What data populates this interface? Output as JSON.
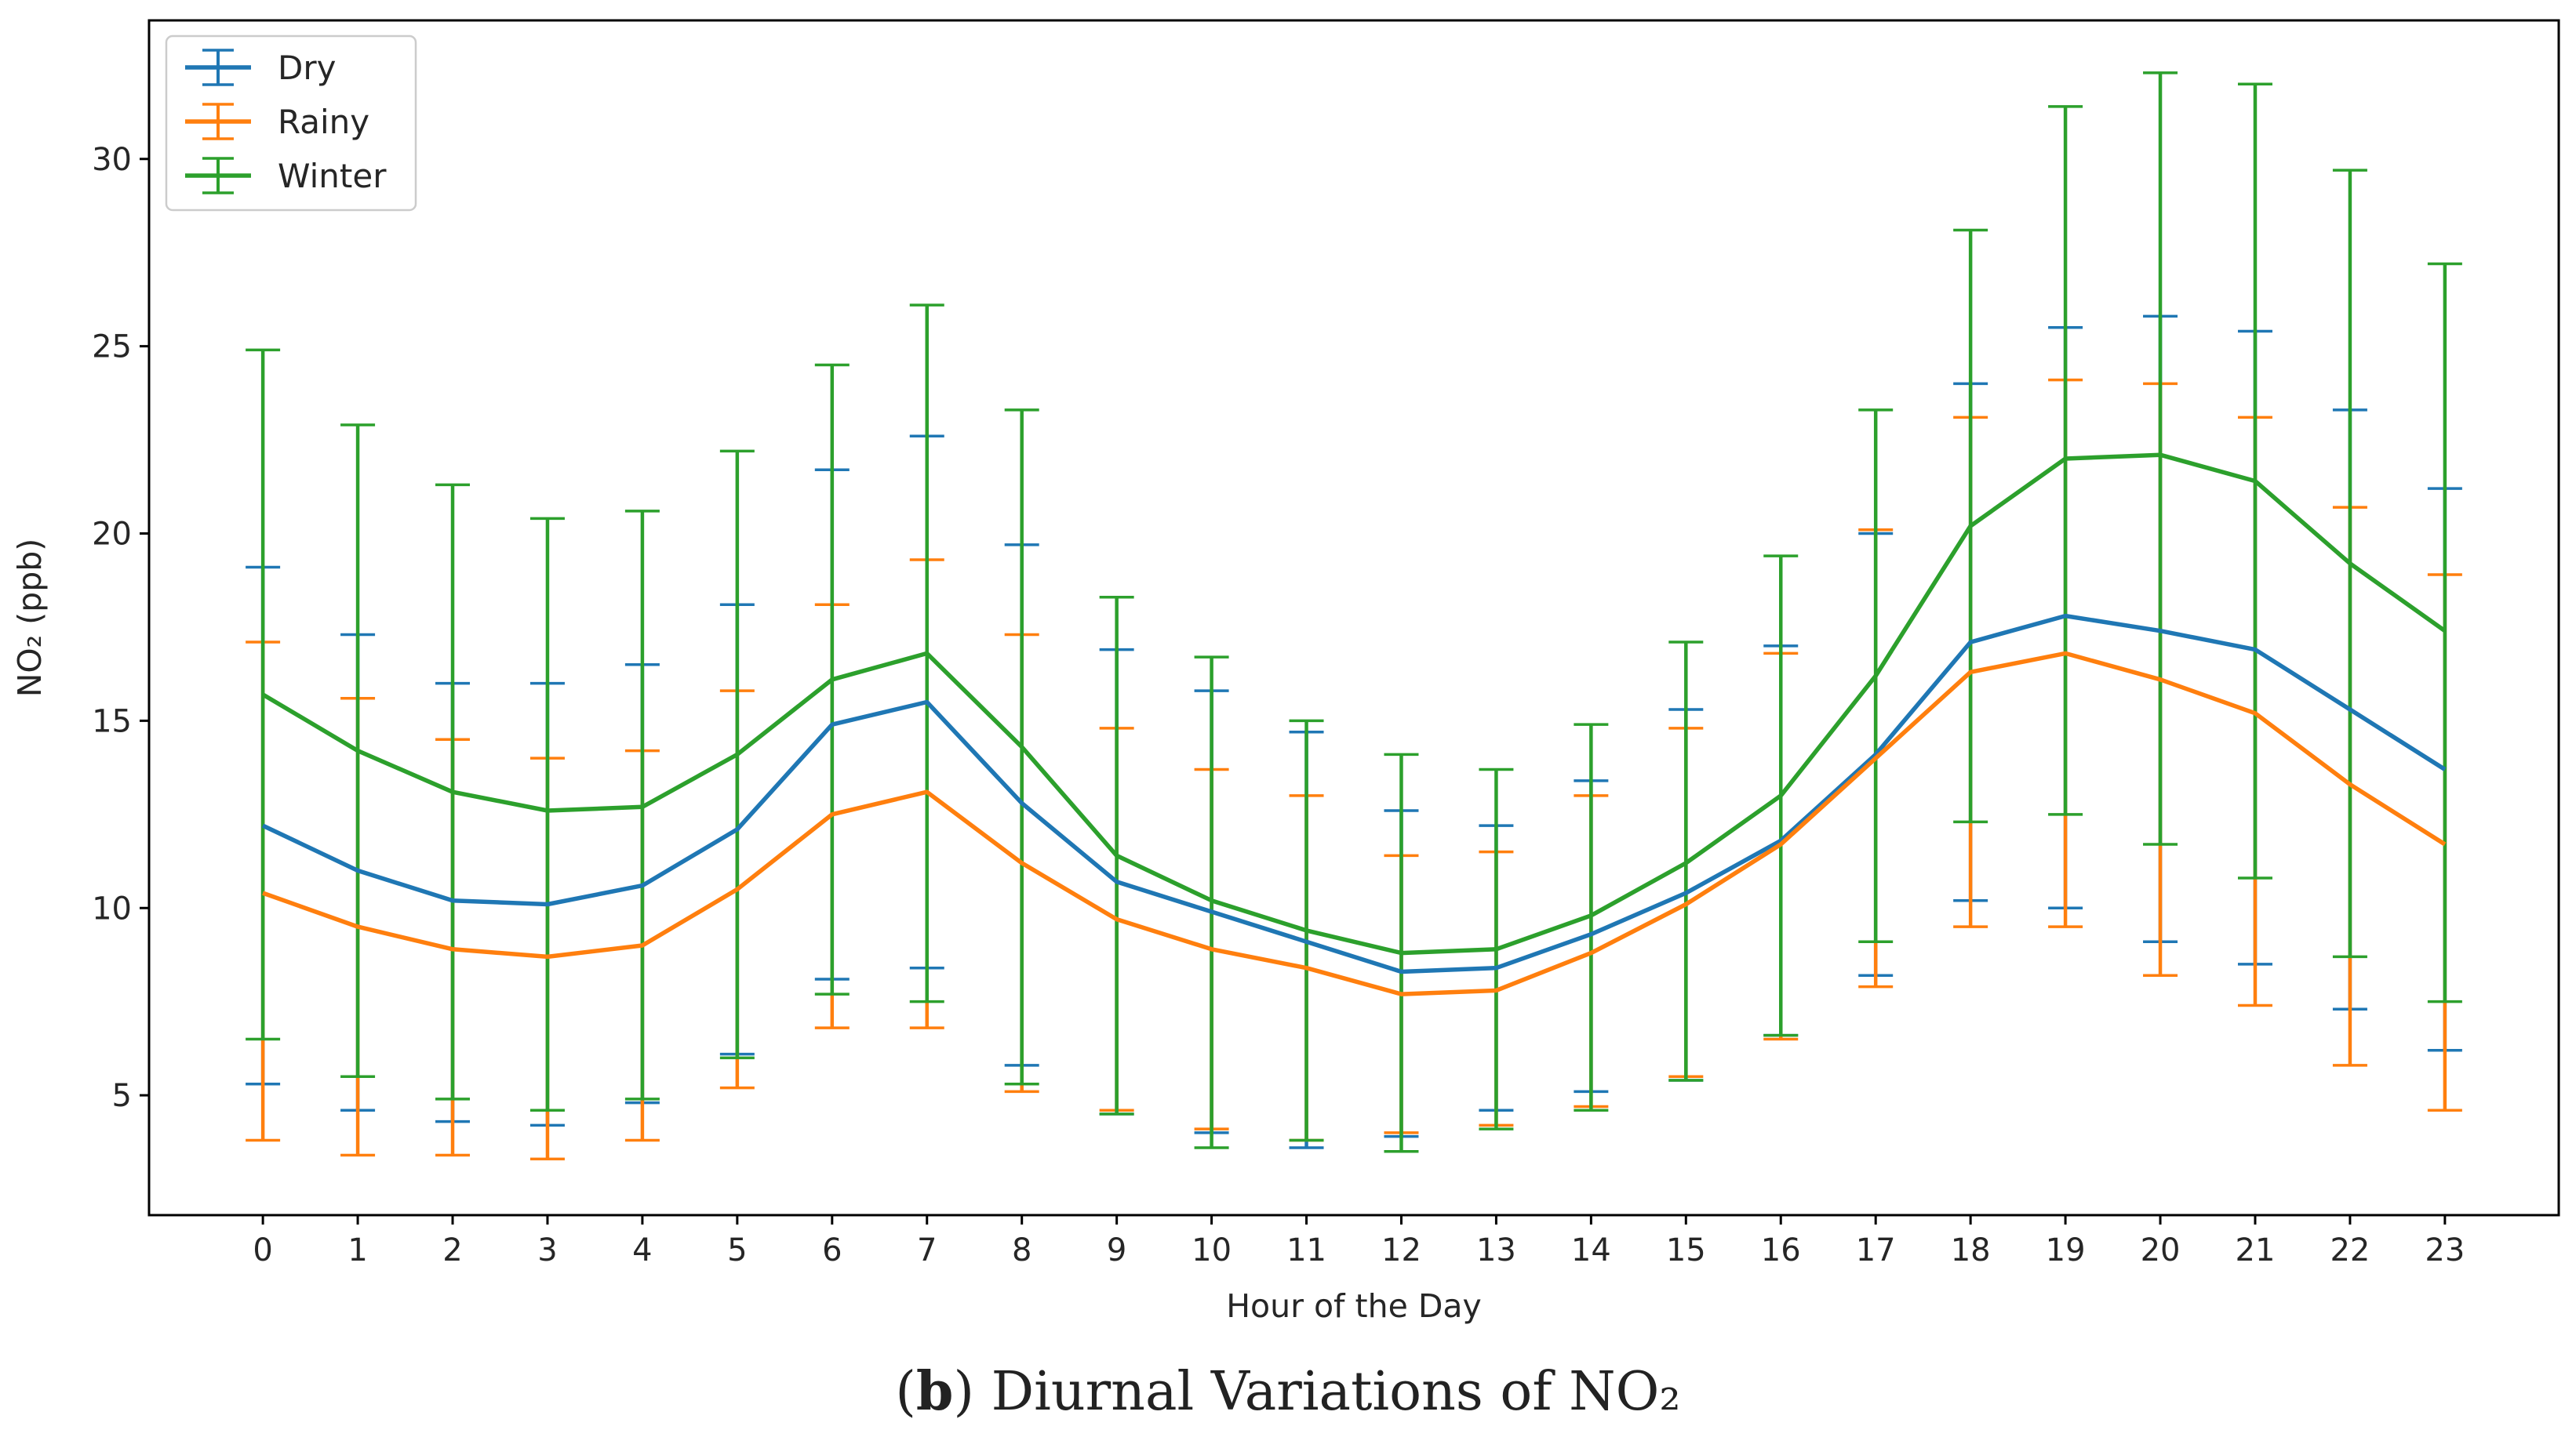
{
  "colors": {
    "dry": "#1f77b4",
    "rainy": "#ff7f0e",
    "winter": "#2ca02c",
    "axis": "#000000"
  },
  "caption": {
    "open": "(",
    "letter": "b",
    "close": ")",
    "text": "Diurnal Variations of NO₂"
  },
  "chart_data": {
    "type": "line",
    "title": "",
    "xlabel": "Hour of the Day",
    "ylabel": "NO₂ (ppb)",
    "xlim": [
      -1.2,
      24.2
    ],
    "ylim": [
      1.8,
      33.7
    ],
    "x": [
      0,
      1,
      2,
      3,
      4,
      5,
      6,
      7,
      8,
      9,
      10,
      11,
      12,
      13,
      14,
      15,
      16,
      17,
      18,
      19,
      20,
      21,
      22,
      23
    ],
    "xticks": [
      "0",
      "1",
      "2",
      "3",
      "4",
      "5",
      "6",
      "7",
      "8",
      "9",
      "10",
      "11",
      "12",
      "13",
      "14",
      "15",
      "16",
      "17",
      "18",
      "19",
      "20",
      "21",
      "22",
      "23"
    ],
    "yticks": [
      5,
      10,
      15,
      20,
      25,
      30
    ],
    "ytick_labels": [
      "5",
      "10",
      "15",
      "20",
      "25",
      "30"
    ],
    "legend": {
      "location": "top-left"
    },
    "series": [
      {
        "key": "dry",
        "name": "Dry",
        "color": "#1f77b4",
        "values": [
          12.2,
          11.0,
          10.2,
          10.1,
          10.6,
          12.1,
          14.9,
          15.5,
          12.8,
          10.7,
          9.9,
          9.1,
          8.3,
          8.4,
          9.3,
          10.4,
          11.8,
          14.1,
          17.1,
          17.8,
          17.4,
          16.9,
          15.3,
          13.7
        ],
        "lower": [
          5.3,
          4.6,
          4.3,
          4.2,
          4.8,
          6.1,
          8.1,
          8.4,
          5.8,
          4.5,
          4.0,
          3.6,
          3.9,
          4.6,
          5.1,
          5.4,
          6.6,
          8.2,
          10.2,
          10.0,
          9.1,
          8.5,
          7.3,
          6.2
        ],
        "upper": [
          19.1,
          17.3,
          16.0,
          16.0,
          16.5,
          18.1,
          21.7,
          22.6,
          19.7,
          16.9,
          15.8,
          14.7,
          12.6,
          12.2,
          13.4,
          15.3,
          17.0,
          20.0,
          24.0,
          25.5,
          25.8,
          25.4,
          23.3,
          21.2
        ]
      },
      {
        "key": "rainy",
        "name": "Rainy",
        "color": "#ff7f0e",
        "values": [
          10.4,
          9.5,
          8.9,
          8.7,
          9.0,
          10.5,
          12.5,
          13.1,
          11.2,
          9.7,
          8.9,
          8.4,
          7.7,
          7.8,
          8.8,
          10.1,
          11.7,
          14.0,
          16.3,
          16.8,
          16.1,
          15.2,
          13.3,
          11.7
        ],
        "lower": [
          3.8,
          3.4,
          3.4,
          3.3,
          3.8,
          5.2,
          6.8,
          6.8,
          5.1,
          4.6,
          4.1,
          3.8,
          4.0,
          4.2,
          4.7,
          5.5,
          6.5,
          7.9,
          9.5,
          9.5,
          8.2,
          7.4,
          5.8,
          4.6
        ],
        "upper": [
          17.1,
          15.6,
          14.5,
          14.0,
          14.2,
          15.8,
          18.1,
          19.3,
          17.3,
          14.8,
          13.7,
          13.0,
          11.4,
          11.5,
          13.0,
          14.8,
          16.8,
          20.1,
          23.1,
          24.1,
          24.0,
          23.1,
          20.7,
          18.9
        ]
      },
      {
        "key": "winter",
        "name": "Winter",
        "color": "#2ca02c",
        "values": [
          15.7,
          14.2,
          13.1,
          12.6,
          12.7,
          14.1,
          16.1,
          16.8,
          14.3,
          11.4,
          10.2,
          9.4,
          8.8,
          8.9,
          9.8,
          11.2,
          13.0,
          16.2,
          20.2,
          22.0,
          22.1,
          21.4,
          19.2,
          17.4
        ],
        "lower": [
          6.5,
          5.5,
          4.9,
          4.6,
          4.9,
          6.0,
          7.7,
          7.5,
          5.3,
          4.5,
          3.6,
          3.8,
          3.5,
          4.1,
          4.6,
          5.4,
          6.6,
          9.1,
          12.3,
          12.5,
          11.7,
          10.8,
          8.7,
          7.5
        ],
        "upper": [
          24.9,
          22.9,
          21.3,
          20.4,
          20.6,
          22.2,
          24.5,
          26.1,
          23.3,
          18.3,
          16.7,
          15.0,
          14.1,
          13.7,
          14.9,
          17.1,
          19.4,
          23.3,
          28.1,
          31.4,
          32.3,
          32.0,
          29.7,
          27.2
        ]
      }
    ]
  }
}
